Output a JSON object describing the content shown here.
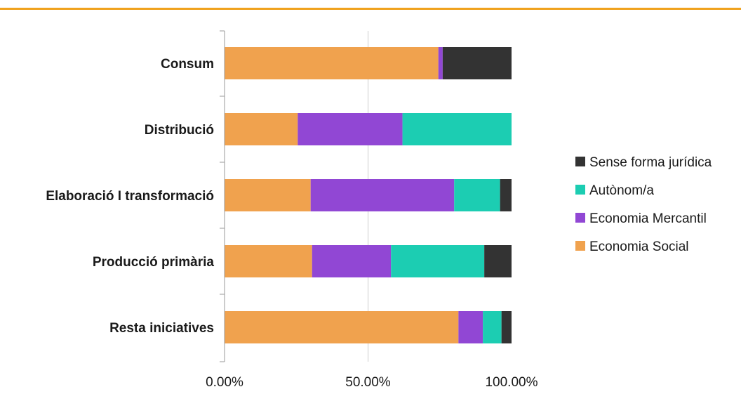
{
  "colors": {
    "top_rule": "#f0a21d",
    "grid": "#cccccc",
    "axis": "#999999"
  },
  "chart_data": {
    "type": "bar",
    "orientation": "horizontal",
    "stacked": true,
    "percent_stacked": true,
    "categories": [
      "Consum",
      "Distribució",
      "Elaboració I transformació",
      "Producció primària",
      "Resta iniciatives"
    ],
    "series": [
      {
        "name": "Economia Social",
        "color": "#f0a24e",
        "values": [
          74.5,
          25.5,
          30.0,
          30.5,
          81.5
        ]
      },
      {
        "name": "Economia Mercantil",
        "color": "#9147d4",
        "values": [
          1.5,
          36.5,
          50.0,
          27.5,
          8.5
        ]
      },
      {
        "name": "Autònom/a",
        "color": "#1ccdb2",
        "values": [
          0,
          38.0,
          16.0,
          32.5,
          6.5
        ]
      },
      {
        "name": "Sense forma jurídica",
        "color": "#333333",
        "values": [
          24.0,
          0,
          4.0,
          9.5,
          3.5
        ]
      }
    ],
    "x_ticks": [
      "0.00%",
      "50.00%",
      "100.00%"
    ],
    "xlim": [
      0,
      100
    ],
    "grid": "vertical",
    "legend_position": "right",
    "legend_order": [
      "Sense forma jurídica",
      "Autònom/a",
      "Economia Mercantil",
      "Economia Social"
    ],
    "title": "",
    "xlabel": "",
    "ylabel": ""
  }
}
